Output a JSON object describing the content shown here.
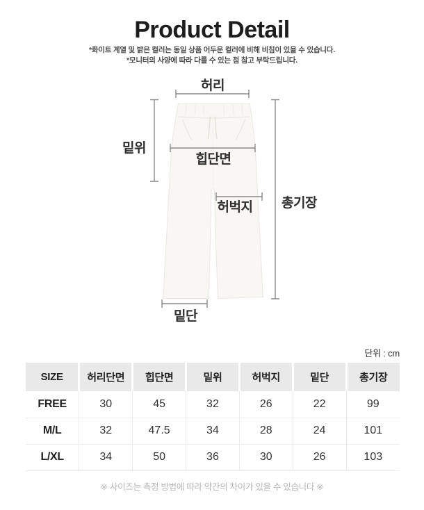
{
  "page": {
    "title": "Product Detail",
    "disclaimer_line1": "*화이트 계열 및 밝은 컬러는 동일 상품 어두운 컬러에 비해 비침이 있을 수 있습니다.",
    "disclaimer_line2": "*모니터의 사양에 따라 다를 수 있는 점 참고 부탁드립니다."
  },
  "diagram": {
    "garment": "pants",
    "labels": {
      "waist": "허리",
      "rise": "밑위",
      "hip": "힙단면",
      "thigh": "허벅지",
      "length": "총기장",
      "hem": "밑단"
    }
  },
  "size_table": {
    "unit_label": "단위 : cm",
    "columns": [
      "SIZE",
      "허리단면",
      "힙단면",
      "밑위",
      "허벅지",
      "밑단",
      "총기장"
    ],
    "rows": [
      {
        "size": "FREE",
        "values": [
          "30",
          "45",
          "32",
          "26",
          "22",
          "99"
        ]
      },
      {
        "size": "M/L",
        "values": [
          "32",
          "47.5",
          "34",
          "28",
          "24",
          "101"
        ]
      },
      {
        "size": "L/XL",
        "values": [
          "34",
          "50",
          "36",
          "30",
          "26",
          "103"
        ]
      }
    ]
  },
  "footer_note": "※ 사이즈는 측정 방법에 따라 약간의 차이가 있을 수 있습니다 ※",
  "colors": {
    "title_text": "#1d1d1d",
    "measure_line": "#8a8a8a",
    "diagram_label_text": "#2e2e2e",
    "pants_fill": "#f8f7f3",
    "table_header_bg": "#e9e9e9",
    "table_divider": "#ececec",
    "note_text": "#b5b5b5"
  }
}
